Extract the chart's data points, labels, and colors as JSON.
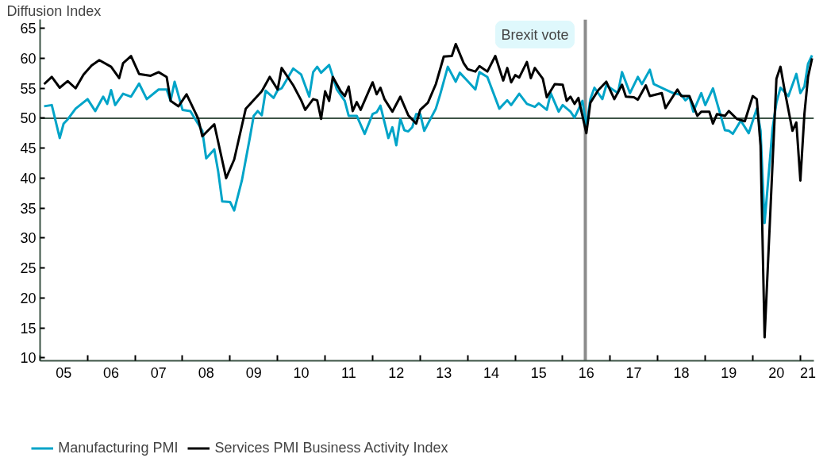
{
  "chart_data": {
    "type": "line",
    "ylabel": "Diffusion Index",
    "xlim": [
      "2005-01-01",
      "2021-04-15"
    ],
    "xticks": [
      {
        "value": "2005-01-01",
        "label": null
      },
      {
        "value": "2005-07-01",
        "label": "05"
      },
      {
        "value": "2006-01-01",
        "label": null
      },
      {
        "value": "2006-07-01",
        "label": "06"
      },
      {
        "value": "2007-01-01",
        "label": null
      },
      {
        "value": "2007-07-01",
        "label": "07"
      },
      {
        "value": "2008-01-01",
        "label": null
      },
      {
        "value": "2008-07-01",
        "label": "08"
      },
      {
        "value": "2009-01-01",
        "label": null
      },
      {
        "value": "2009-07-01",
        "label": "09"
      },
      {
        "value": "2010-01-01",
        "label": null
      },
      {
        "value": "2010-07-01",
        "label": "10"
      },
      {
        "value": "2011-01-01",
        "label": null
      },
      {
        "value": "2011-07-01",
        "label": "11"
      },
      {
        "value": "2012-01-01",
        "label": null
      },
      {
        "value": "2012-07-01",
        "label": "12"
      },
      {
        "value": "2013-01-01",
        "label": null
      },
      {
        "value": "2013-07-01",
        "label": "13"
      },
      {
        "value": "2014-01-01",
        "label": null
      },
      {
        "value": "2014-07-01",
        "label": "14"
      },
      {
        "value": "2015-01-01",
        "label": null
      },
      {
        "value": "2015-07-01",
        "label": "15"
      },
      {
        "value": "2016-01-01",
        "label": null
      },
      {
        "value": "2016-07-01",
        "label": "16"
      },
      {
        "value": "2017-01-01",
        "label": null
      },
      {
        "value": "2017-07-01",
        "label": "17"
      },
      {
        "value": "2018-01-01",
        "label": null
      },
      {
        "value": "2018-07-01",
        "label": "18"
      },
      {
        "value": "2019-01-01",
        "label": null
      },
      {
        "value": "2019-07-01",
        "label": "19"
      },
      {
        "value": "2020-01-01",
        "label": null
      },
      {
        "value": "2020-07-01",
        "label": "20"
      },
      {
        "value": "2021-01-01",
        "label": null
      },
      {
        "value": "2021-03-01",
        "label": "21"
      }
    ],
    "ylim": [
      9.5,
      66.5
    ],
    "yticks": [
      10,
      15,
      20,
      25,
      30,
      35,
      40,
      45,
      50,
      55,
      60,
      65
    ],
    "grid": false,
    "legend": "bottom",
    "line_style": "solid",
    "marker": "none",
    "ref_lines": [
      {
        "axis": "y",
        "value": 50,
        "label": null,
        "color": "#3d5446",
        "line_style": "solid"
      },
      {
        "axis": "x",
        "value": "2016-06-23",
        "label": "Brexit vote",
        "color": "#8c8c8c",
        "line_style": "solid"
      }
    ],
    "series": [
      {
        "name": "Manufacturing PMI",
        "color": "#00a4c8",
        "x": [
          "2005-02",
          "2005-04",
          "2005-06",
          "2005-07",
          "2005-08",
          "2005-10",
          "2006-01",
          "2006-03",
          "2006-05",
          "2006-06",
          "2006-07",
          "2006-08",
          "2006-10",
          "2006-12",
          "2007-02",
          "2007-04",
          "2007-07",
          "2007-09",
          "2007-10",
          "2007-11",
          "2008-01",
          "2008-03",
          "2008-06",
          "2008-07",
          "2008-09",
          "2008-10",
          "2008-11",
          "2009-01",
          "2009-02",
          "2009-04",
          "2009-06",
          "2009-07",
          "2009-08",
          "2009-09",
          "2009-10",
          "2009-12",
          "2010-01",
          "2010-02",
          "2010-05",
          "2010-07",
          "2010-09",
          "2010-10",
          "2010-11",
          "2010-12",
          "2011-02",
          "2011-04",
          "2011-06",
          "2011-07",
          "2011-09",
          "2011-11",
          "2012-01",
          "2012-02",
          "2012-03",
          "2012-05",
          "2012-06",
          "2012-07",
          "2012-08",
          "2012-09",
          "2012-10",
          "2012-11",
          "2012-12",
          "2013-01",
          "2013-02",
          "2013-05",
          "2013-06",
          "2013-08",
          "2013-10",
          "2013-11",
          "2014-01",
          "2014-03",
          "2014-04",
          "2014-06",
          "2014-09",
          "2014-11",
          "2014-12",
          "2015-02",
          "2015-04",
          "2015-06",
          "2015-07",
          "2015-09",
          "2015-10",
          "2015-12",
          "2016-01",
          "2016-03",
          "2016-04",
          "2016-06",
          "2016-07",
          "2016-08",
          "2016-09",
          "2016-11",
          "2016-12",
          "2017-03",
          "2017-04",
          "2017-06",
          "2017-08",
          "2017-09",
          "2017-11",
          "2017-12",
          "2018-03",
          "2018-05",
          "2018-07",
          "2018-08",
          "2018-09",
          "2018-10",
          "2018-12",
          "2019-01",
          "2019-03",
          "2019-04",
          "2019-06",
          "2019-07",
          "2019-08",
          "2019-10",
          "2019-12",
          "2020-02",
          "2020-03",
          "2020-04",
          "2020-06",
          "2020-07",
          "2020-08",
          "2020-10",
          "2020-12",
          "2021-01",
          "2021-02",
          "2021-03",
          "2021-04"
        ],
        "values": [
          52,
          52.2,
          46.7,
          49.1,
          49.8,
          51.6,
          53.2,
          51.2,
          53.6,
          52.4,
          54.7,
          52.2,
          54.1,
          53.6,
          55.8,
          53.2,
          54.8,
          54.8,
          52.9,
          56.1,
          51.4,
          51.2,
          47.9,
          43.3,
          44.8,
          41.1,
          36.1,
          36,
          34.6,
          39.6,
          46.7,
          50.4,
          51.2,
          50.5,
          54.6,
          53.4,
          54.7,
          55,
          58.3,
          57.3,
          53.6,
          57.7,
          58.6,
          57.6,
          58.9,
          54.8,
          52.9,
          50.4,
          50.4,
          47.4,
          50.7,
          51,
          52.1,
          46.7,
          48.5,
          45.5,
          49.9,
          48,
          47.8,
          48.5,
          50.7,
          50.7,
          47.9,
          51.6,
          53.8,
          58.6,
          56.1,
          57.6,
          56.2,
          54.8,
          57.7,
          56.9,
          51.6,
          53,
          52.2,
          54.1,
          52.4,
          51.9,
          52.5,
          51.4,
          54.2,
          51.1,
          52.2,
          51.1,
          50.1,
          52.9,
          48.6,
          53.2,
          55.1,
          53.2,
          55.5,
          54.2,
          57.7,
          54.2,
          56.9,
          55.7,
          58.1,
          55.7,
          54.8,
          54.2,
          53.9,
          53,
          53.6,
          51.1,
          54.2,
          52.2,
          55,
          52.6,
          48,
          47.9,
          47.4,
          49.6,
          47.5,
          51.6,
          47.9,
          32.5,
          48.3,
          52.6,
          55.1,
          53.7,
          57.4,
          54.2,
          55.3,
          59.1,
          60.5
        ]
      },
      {
        "name": "Services PMI Business Activity Index",
        "color": "#000000",
        "x": [
          "2005-02",
          "2005-04",
          "2005-06",
          "2005-08",
          "2005-10",
          "2005-12",
          "2006-02",
          "2006-04",
          "2006-07",
          "2006-09",
          "2006-10",
          "2006-12",
          "2007-02",
          "2007-05",
          "2007-07",
          "2007-09",
          "2007-10",
          "2007-12",
          "2008-02",
          "2008-05",
          "2008-06",
          "2008-09",
          "2008-12",
          "2009-02",
          "2009-05",
          "2009-09",
          "2009-11",
          "2010-01",
          "2010-02",
          "2010-05",
          "2010-07",
          "2010-08",
          "2010-10",
          "2010-11",
          "2010-12",
          "2011-01",
          "2011-02",
          "2011-03",
          "2011-05",
          "2011-06",
          "2011-07",
          "2011-08",
          "2011-09",
          "2011-10",
          "2012-01",
          "2012-02",
          "2012-03",
          "2012-04",
          "2012-06",
          "2012-08",
          "2012-10",
          "2012-12",
          "2013-01",
          "2013-03",
          "2013-05",
          "2013-07",
          "2013-09",
          "2013-10",
          "2013-12",
          "2014-01",
          "2014-03",
          "2014-04",
          "2014-06",
          "2014-08",
          "2014-10",
          "2014-11",
          "2014-12",
          "2015-01",
          "2015-02",
          "2015-04",
          "2015-05",
          "2015-06",
          "2015-08",
          "2015-09",
          "2015-11",
          "2016-01",
          "2016-02",
          "2016-03",
          "2016-04",
          "2016-05",
          "2016-07",
          "2016-08",
          "2016-10",
          "2016-12",
          "2017-02",
          "2017-04",
          "2017-05",
          "2017-07",
          "2017-08",
          "2017-10",
          "2017-11",
          "2018-02",
          "2018-03",
          "2018-06",
          "2018-07",
          "2018-09",
          "2018-11",
          "2018-12",
          "2019-02",
          "2019-03",
          "2019-04",
          "2019-06",
          "2019-07",
          "2019-09",
          "2019-11",
          "2020-01",
          "2020-02",
          "2020-03",
          "2020-04",
          "2020-07",
          "2020-08",
          "2020-09",
          "2020-11",
          "2020-12",
          "2021-01",
          "2021-02",
          "2021-03",
          "2021-04"
        ],
        "values": [
          55.7,
          56.9,
          55.1,
          56.2,
          55,
          57.3,
          58.8,
          59.7,
          58.6,
          56.7,
          59.2,
          60.4,
          57.4,
          57.1,
          57.7,
          56.9,
          52.9,
          52,
          54,
          49.9,
          47,
          49,
          40,
          43.1,
          51.6,
          54.5,
          56.9,
          54.8,
          58.4,
          55.5,
          53,
          51.4,
          53.2,
          53,
          49.9,
          54.5,
          52.9,
          56.9,
          54.5,
          53.7,
          55.3,
          51.2,
          52.7,
          51.4,
          56,
          54,
          55.1,
          53.2,
          51.1,
          53.6,
          50.5,
          49.1,
          51.4,
          52.6,
          55.7,
          60.3,
          60.4,
          62.4,
          59.2,
          58.2,
          57.8,
          58.7,
          57.8,
          60.4,
          56.3,
          58.4,
          56,
          57.2,
          56.8,
          59.4,
          56.7,
          58.4,
          56.6,
          53.5,
          55.7,
          55.6,
          52.9,
          53.6,
          52.4,
          53.4,
          47.5,
          52.6,
          54.7,
          56.1,
          53.2,
          55.6,
          53.6,
          53.5,
          53.1,
          55.5,
          53.7,
          54.2,
          51.7,
          54.8,
          53.7,
          53.7,
          50.4,
          51.1,
          51.1,
          49.1,
          50.7,
          50.4,
          51.2,
          49.9,
          49.5,
          53.7,
          53.2,
          45.4,
          13.4,
          56.6,
          58.6,
          54.8,
          47.9,
          49.3,
          39.6,
          50.7,
          56.9,
          60
        ]
      }
    ]
  }
}
